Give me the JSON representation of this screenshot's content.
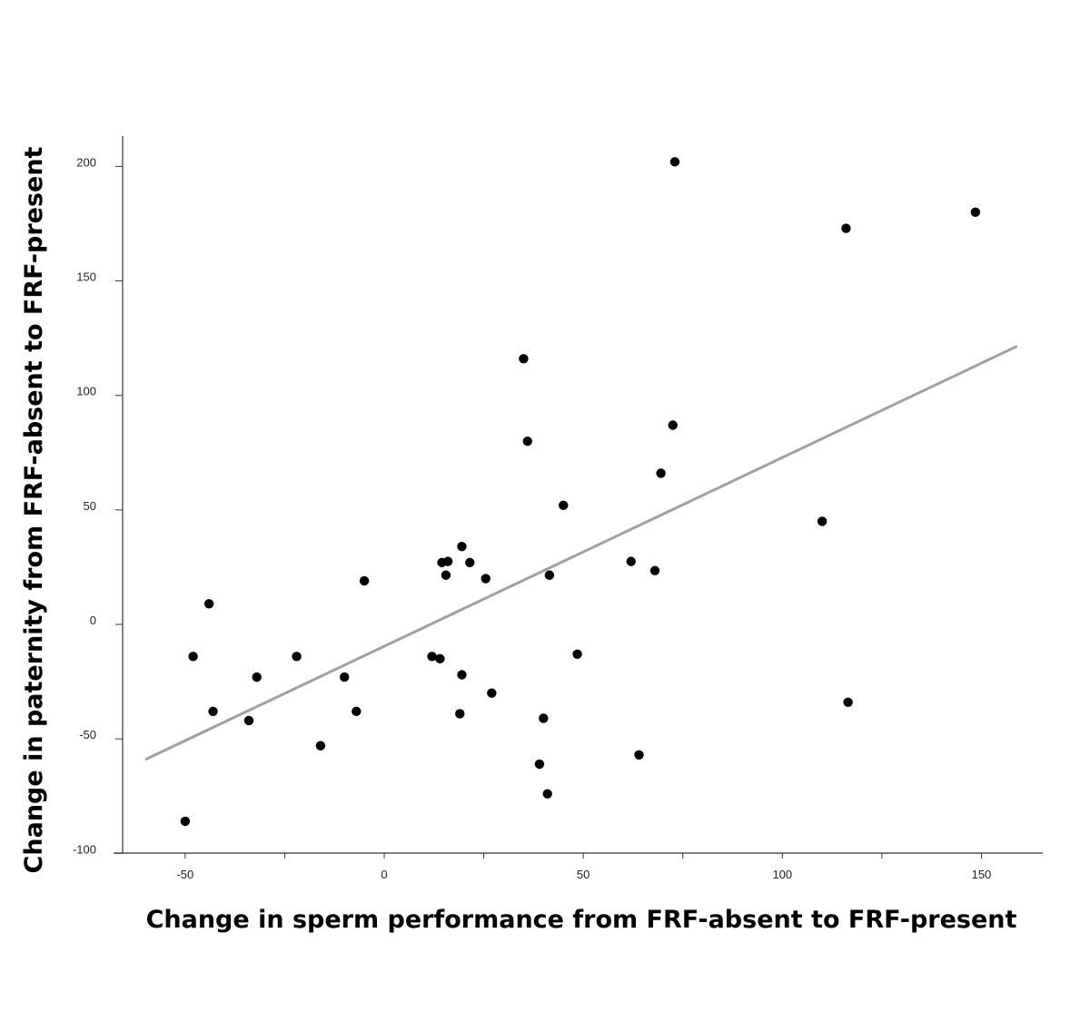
{
  "chart_data": {
    "type": "scatter",
    "xlabel": "Change in sperm performance from FRF-absent to FRF-present",
    "ylabel": "Change in paternity from FRF-absent to FRF-present",
    "xlim": [
      -68,
      166
    ],
    "ylim": [
      -100,
      213
    ],
    "xticks": [
      -50,
      0,
      50,
      100,
      150
    ],
    "xminor": [
      -25,
      25,
      75,
      125
    ],
    "yticks": [
      -100,
      -50,
      0,
      50,
      100,
      150,
      200
    ],
    "grid": false,
    "point_color": "#000000",
    "trend_color": "#a0a0a0",
    "trendline": {
      "x": [
        -60,
        159
      ],
      "y": [
        -59,
        121.5
      ]
    },
    "points": [
      {
        "x": -50,
        "y": -86
      },
      {
        "x": -48,
        "y": -14
      },
      {
        "x": -44,
        "y": 9
      },
      {
        "x": -43,
        "y": -38
      },
      {
        "x": -34,
        "y": -42
      },
      {
        "x": -32,
        "y": -23
      },
      {
        "x": -22,
        "y": -14
      },
      {
        "x": -16,
        "y": -53
      },
      {
        "x": -10,
        "y": -23
      },
      {
        "x": -7,
        "y": -38
      },
      {
        "x": -5,
        "y": 19
      },
      {
        "x": 12,
        "y": -14
      },
      {
        "x": 14,
        "y": -15
      },
      {
        "x": 14.5,
        "y": 27
      },
      {
        "x": 15.5,
        "y": 21.5
      },
      {
        "x": 16,
        "y": 27.5
      },
      {
        "x": 19,
        "y": -39
      },
      {
        "x": 19.5,
        "y": -22
      },
      {
        "x": 19.5,
        "y": 34
      },
      {
        "x": 21.5,
        "y": 27
      },
      {
        "x": 25.5,
        "y": 20
      },
      {
        "x": 27,
        "y": -30
      },
      {
        "x": 35,
        "y": 116
      },
      {
        "x": 36,
        "y": 80
      },
      {
        "x": 39,
        "y": -61
      },
      {
        "x": 40,
        "y": -41
      },
      {
        "x": 41,
        "y": -74
      },
      {
        "x": 41.5,
        "y": 21.5
      },
      {
        "x": 45,
        "y": 52
      },
      {
        "x": 48.5,
        "y": -13
      },
      {
        "x": 62,
        "y": 27.5
      },
      {
        "x": 64,
        "y": -57
      },
      {
        "x": 68,
        "y": 23.5
      },
      {
        "x": 69.5,
        "y": 66
      },
      {
        "x": 72.5,
        "y": 87
      },
      {
        "x": 73,
        "y": 202
      },
      {
        "x": 110,
        "y": 45
      },
      {
        "x": 116,
        "y": 173
      },
      {
        "x": 116.5,
        "y": -34
      },
      {
        "x": 148.5,
        "y": 180
      }
    ]
  }
}
